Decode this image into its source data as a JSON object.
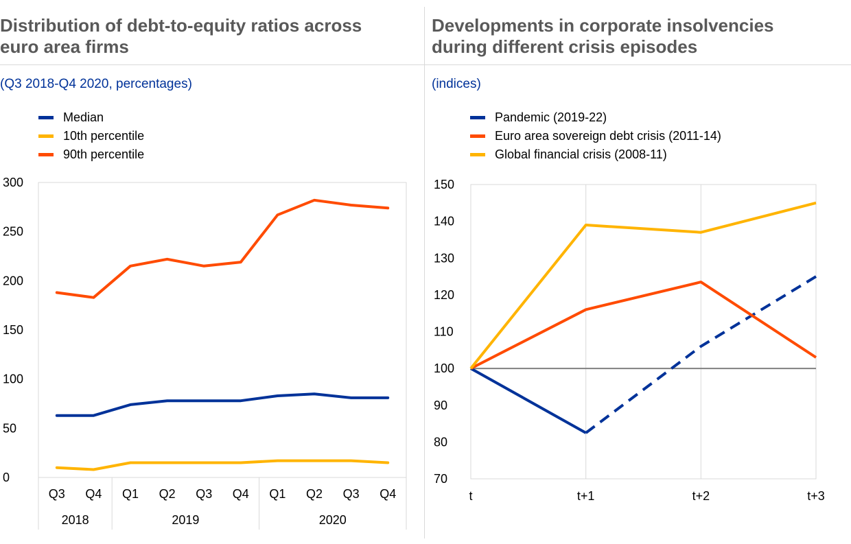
{
  "colors": {
    "blue": "#003299",
    "orange": "#ff4b00",
    "yellow": "#ffb400",
    "title_gray": "#595959",
    "grid": "#d9d9d9"
  },
  "left": {
    "title": "Distribution of debt-to-equity ratios across\neuro area firms",
    "subtitle": "(Q3 2018-Q4 2020, percentages)"
  },
  "right": {
    "title": "Developments in corporate insolvencies\nduring different crisis episodes",
    "subtitle": "(indices)"
  },
  "chart_data": [
    {
      "type": "line",
      "title": "Distribution of debt-to-equity ratios across euro area firms",
      "subtitle": "(Q3 2018-Q4 2020, percentages)",
      "categories": [
        "Q3",
        "Q4",
        "Q1",
        "Q2",
        "Q3",
        "Q4",
        "Q1",
        "Q2",
        "Q3",
        "Q4"
      ],
      "year_groups": [
        {
          "label": "2018",
          "count": 2
        },
        {
          "label": "2019",
          "count": 4
        },
        {
          "label": "2020",
          "count": 4
        }
      ],
      "ylim": [
        0,
        300
      ],
      "yticks": [
        0,
        50,
        100,
        150,
        200,
        250,
        300
      ],
      "grid": false,
      "legend_position": "top-left",
      "series": [
        {
          "name": "Median",
          "color": "#003299",
          "values": [
            63,
            63,
            74,
            78,
            78,
            78,
            83,
            85,
            81,
            81
          ]
        },
        {
          "name": "10th  percentile",
          "color": "#ffb400",
          "values": [
            10,
            8,
            15,
            15,
            15,
            15,
            17,
            17,
            17,
            15
          ]
        },
        {
          "name": "90th  percentile",
          "color": "#ff4b00",
          "values": [
            188,
            183,
            215,
            222,
            215,
            219,
            267,
            282,
            277,
            274
          ]
        }
      ]
    },
    {
      "type": "line",
      "title": "Developments in corporate insolvencies during different crisis episodes",
      "subtitle": "(indices)",
      "categories": [
        "t",
        "t+1",
        "t+2",
        "t+3"
      ],
      "ylim": [
        70,
        150
      ],
      "yticks": [
        70,
        80,
        90,
        100,
        110,
        120,
        130,
        140,
        150
      ],
      "grid": false,
      "reference_line": 100,
      "legend_position": "top-left",
      "series": [
        {
          "name": "Pandemic  (2019-22)",
          "color": "#003299",
          "values": [
            100,
            82.5,
            106,
            125
          ],
          "dashed_from_index": 1
        },
        {
          "name": "Euro area sovereign  debt  crisis (2011-14)",
          "color": "#ff4b00",
          "values": [
            100,
            116,
            123.5,
            103
          ]
        },
        {
          "name": "Global  financial crisis (2008-11)",
          "color": "#ffb400",
          "values": [
            100,
            139,
            137,
            145
          ]
        }
      ]
    }
  ]
}
